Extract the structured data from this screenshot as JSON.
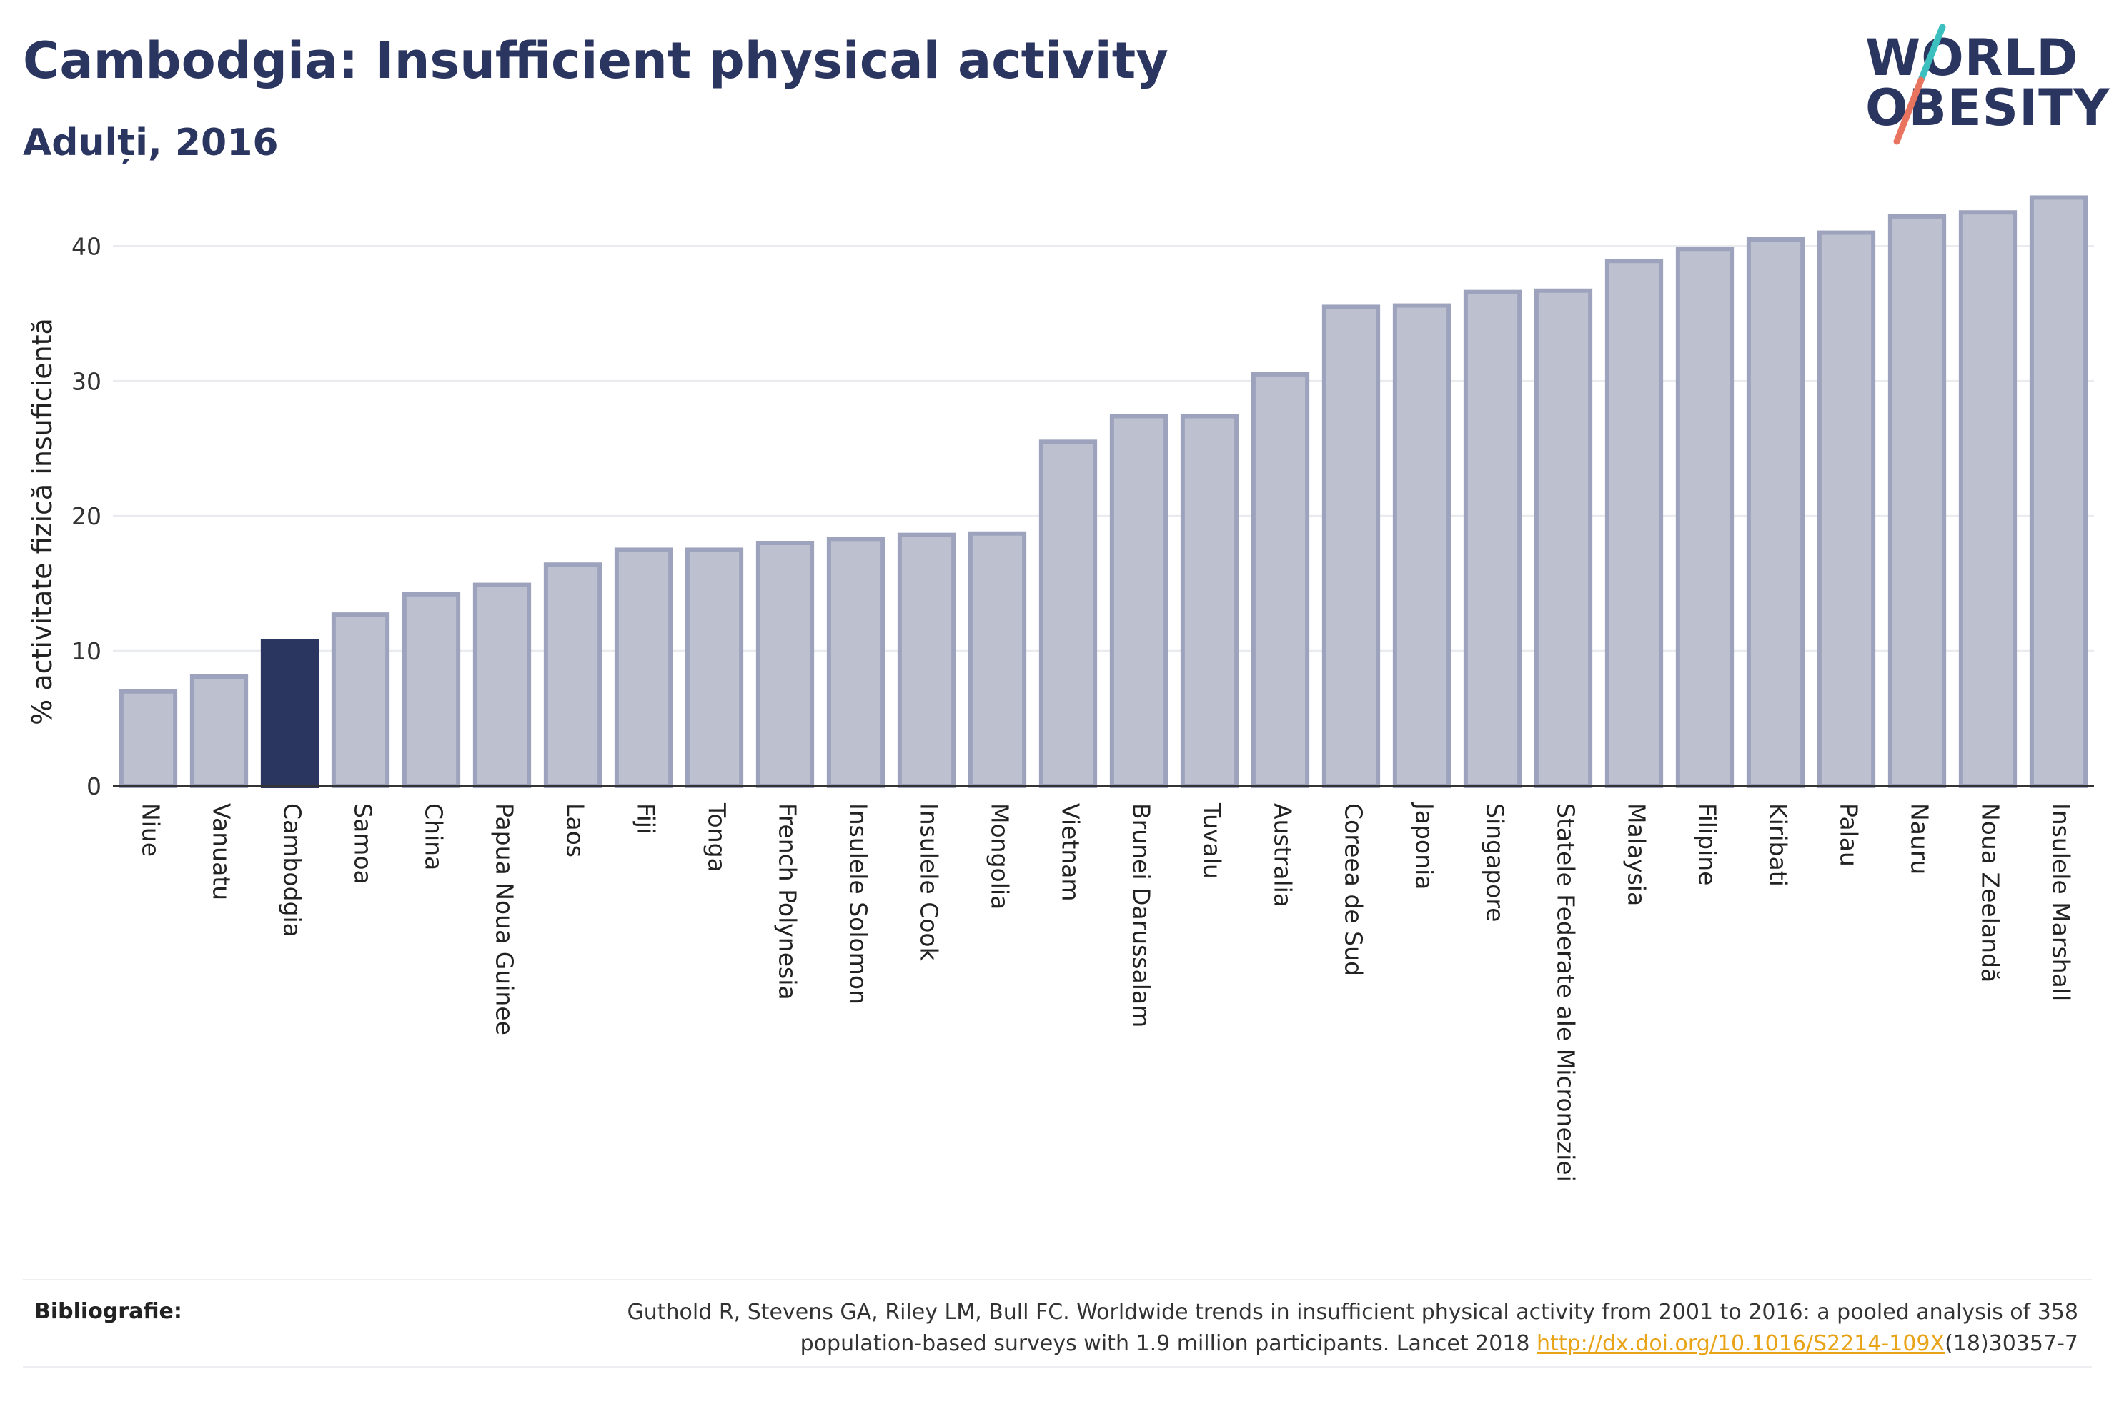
{
  "header": {
    "title": "Cambodgia: Insufficient physical activity",
    "subtitle": "Adulți, 2016"
  },
  "logo": {
    "line1": "WORLD",
    "line2": "OBESITY"
  },
  "colors": {
    "bar": "#bcc0cf",
    "bar_border": "#9ea3bd",
    "highlight": "#2b3660",
    "axis": "#333333",
    "grid": "#e9ebef",
    "logo_teal": "#3bbfbf",
    "logo_coral": "#e8735f"
  },
  "chart_data": {
    "type": "bar",
    "ylabel": "% activitate fizică insuficientă",
    "ylim": [
      0,
      45
    ],
    "yticks": [
      0,
      10,
      20,
      30,
      40
    ],
    "grid": true,
    "highlight_category": "Cambodgia",
    "categories": [
      "Niue",
      "Vanuatu",
      "Cambodgia",
      "Samoa",
      "China",
      "Papua Noua Guinee",
      "Laos",
      "Fiji",
      "Tonga",
      "French Polynesia",
      "Insulele Solomon",
      "Insulele Cook",
      "Mongolia",
      "Vietnam",
      "Brunei Darussalam",
      "Tuvalu",
      "Australia",
      "Coreea de Sud",
      "Japonia",
      "Singapore",
      "Statele Federate ale Microneziei",
      "Malaysia",
      "Filipine",
      "Kiribati",
      "Palau",
      "Nauru",
      "Noua Zeelandă",
      "Insulele Marshall"
    ],
    "values": [
      7.0,
      8.1,
      10.7,
      12.7,
      14.2,
      14.9,
      16.4,
      17.5,
      17.5,
      18.0,
      18.3,
      18.6,
      18.7,
      25.5,
      27.4,
      27.4,
      30.5,
      35.5,
      35.6,
      36.6,
      36.7,
      38.9,
      39.8,
      40.5,
      41.0,
      42.2,
      42.5,
      43.6
    ]
  },
  "bibliography": {
    "label": "Bibliografie:",
    "line1": "Guthold R, Stevens GA, Riley LM, Bull FC. Worldwide trends in insufficient physical activity from 2001 to 2016: a pooled analysis of 358",
    "line2_prefix": "population-based surveys with 1.9 million participants. Lancet 2018 ",
    "link": "http://dx.doi.org/10.1016/S2214-109X",
    "line2_suffix": "(18)30357-7"
  }
}
